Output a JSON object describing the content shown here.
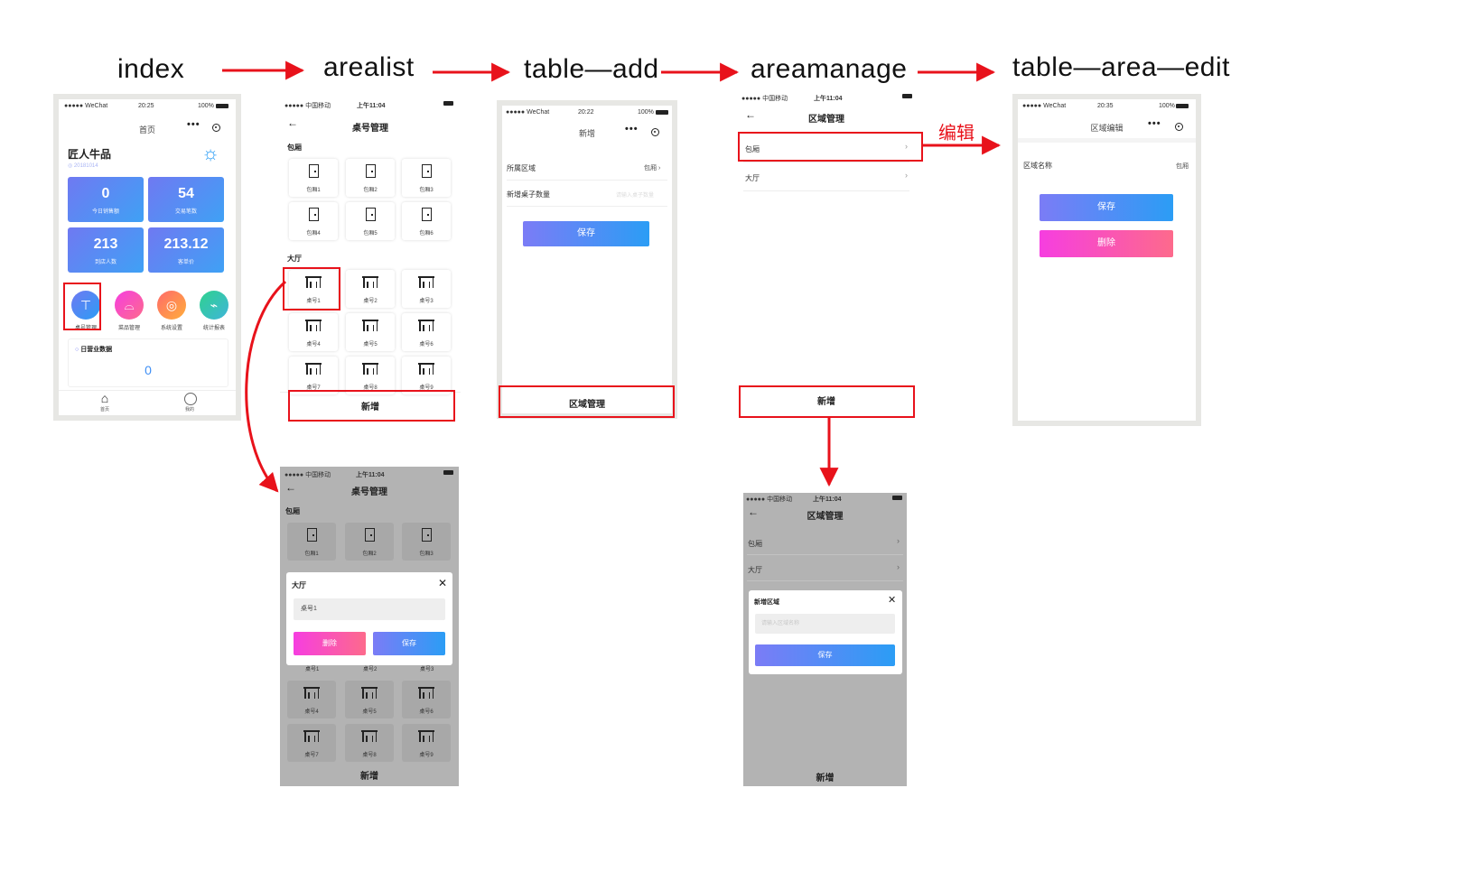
{
  "steps": {
    "index": "index",
    "arealist": "arealist",
    "table_add": "table—add",
    "areamanage": "areamanage",
    "table_area_edit": "table—area—edit"
  },
  "edit_label": "编辑",
  "index_screen": {
    "carrier": "●●●●● WeChat",
    "time": "20:25",
    "battery": "100%",
    "nav_title": "首页",
    "shop_name": "匠人牛品",
    "date": "20181014",
    "stats": [
      {
        "value": "0",
        "label": "今日销售额"
      },
      {
        "value": "54",
        "label": "交易笔数"
      },
      {
        "value": "213",
        "label": "到店人数"
      },
      {
        "value": "213.12",
        "label": "客单价"
      }
    ],
    "menu": [
      {
        "label": "桌号管理",
        "icon": "table-manage-icon"
      },
      {
        "label": "菜品管理",
        "icon": "dish-icon"
      },
      {
        "label": "系统设置",
        "icon": "settings-icon"
      },
      {
        "label": "统计报表",
        "icon": "chart-icon"
      }
    ],
    "daily_title": "日营业数据",
    "daily_value": "0",
    "tabs": [
      "首页",
      "我的"
    ]
  },
  "arealist_screen": {
    "carrier": "●●●●● 中国移动",
    "time": "上午11:04",
    "title": "桌号管理",
    "section_private": "包厢",
    "private_rooms": [
      "包厢1",
      "包厢2",
      "包厢3",
      "包厢4",
      "包厢5",
      "包厢6"
    ],
    "section_hall": "大厅",
    "tables": [
      "桌号1",
      "桌号2",
      "桌号3",
      "桌号4",
      "桌号5",
      "桌号6",
      "桌号7",
      "桌号8",
      "桌号9"
    ],
    "add_button": "新增"
  },
  "arealist_modal_screen": {
    "carrier": "●●●●● 中国移动",
    "time": "上午11:04",
    "title": "桌号管理",
    "section_private": "包厢",
    "private_rooms": [
      "包厢1",
      "包厢2",
      "包厢3"
    ],
    "modal_title": "大厅",
    "modal_input": "桌号1",
    "delete_button": "删除",
    "save_button": "保存",
    "tables_row1": [
      "桌号1",
      "桌号2",
      "桌号3"
    ],
    "tables": [
      "桌号4",
      "桌号5",
      "桌号6",
      "桌号7",
      "桌号8",
      "桌号9"
    ],
    "add_button": "新增"
  },
  "table_add_screen": {
    "carrier": "●●●●● WeChat",
    "time": "20:22",
    "battery": "100%",
    "nav_title": "新增",
    "area_label": "所属区域",
    "area_value": "包厢",
    "count_label": "新增桌子数量",
    "count_placeholder": "请输入桌子数量",
    "save_button": "保存",
    "bottom_button": "区域管理"
  },
  "areamanage_screen": {
    "carrier": "●●●●● 中国移动",
    "time": "上午11:04",
    "title": "区域管理",
    "items": [
      "包厢",
      "大厅"
    ],
    "add_button": "新增"
  },
  "areamanage_modal_screen": {
    "carrier": "●●●●● 中国移动",
    "time": "上午11:04",
    "title": "区域管理",
    "items": [
      "包厢",
      "大厅"
    ],
    "modal_title": "新增区域",
    "input_placeholder": "请输入区域名称",
    "save_button": "保存",
    "add_button": "新增"
  },
  "table_area_edit_screen": {
    "carrier": "●●●●● WeChat",
    "time": "20:35",
    "battery": "100%",
    "nav_title": "区域编辑",
    "name_label": "区域名称",
    "name_value": "包厢",
    "save_button": "保存",
    "delete_button": "删除"
  },
  "colors": {
    "arrow": "#e8121b",
    "tile_blue_start": "#6f79f2",
    "tile_blue_end": "#3fa1f5",
    "button_blue": "#2b9df5",
    "button_pink": "#f63ee0",
    "modal_overlay": "#b3b3b3"
  }
}
